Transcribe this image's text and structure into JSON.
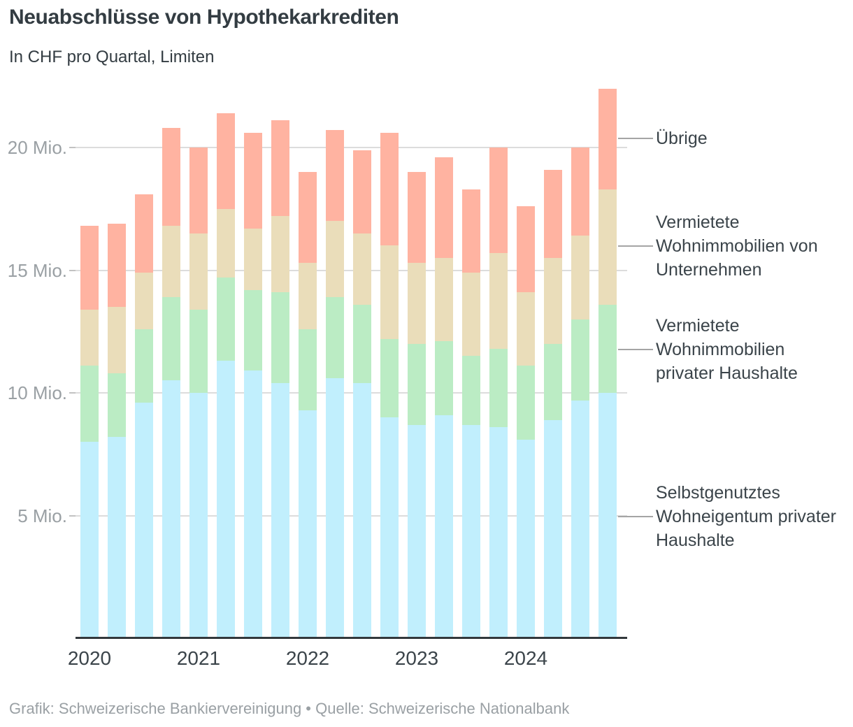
{
  "header": {
    "title": "Neuabschlüsse von Hypothekarkrediten",
    "subtitle": "In CHF pro Quartal, Limiten"
  },
  "footer": {
    "credit": "Grafik: Schweizerische Bankiervereinigung • Quelle: Schweizerische Nationalbank"
  },
  "legend": {
    "items": [
      {
        "id": "uebrige",
        "label_lines": [
          "Übrige"
        ],
        "color": "#ffb3a1"
      },
      {
        "id": "vermietete-wohnimmobilien-unternehmen",
        "label_lines": [
          "Vermietete",
          "Wohnimmobilien von",
          "Unternehmen"
        ],
        "color": "#eaddba"
      },
      {
        "id": "vermietete-wohnimmobilien-haushalte",
        "label_lines": [
          "Vermietete",
          "Wohnimmobilien",
          "privater Haushalte"
        ],
        "color": "#bbecc4"
      },
      {
        "id": "selbstgenutztes-wohneigentum",
        "label_lines": [
          "Selbstgenutztes",
          "Wohneigentum privater",
          "Haushalte"
        ],
        "color": "#c1effd"
      }
    ]
  },
  "chart_data": {
    "type": "bar",
    "stacked": true,
    "title": "Neuabschlüsse von Hypothekarkrediten",
    "subtitle": "In CHF pro Quartal, Limiten",
    "unit": "Mio. CHF pro Quartal",
    "grid": true,
    "ylim": [
      0,
      22.5
    ],
    "yticks": [
      5,
      10,
      15,
      20
    ],
    "ytick_labels": [
      "5 Mio.",
      "10 Mio.",
      "15 Mio.",
      "20 Mio."
    ],
    "x_year_labels": [
      "2020",
      "2021",
      "2022",
      "2023",
      "2024"
    ],
    "categories": [
      "2020 Q1",
      "2020 Q2",
      "2020 Q3",
      "2020 Q4",
      "2021 Q1",
      "2021 Q2",
      "2021 Q3",
      "2021 Q4",
      "2022 Q1",
      "2022 Q2",
      "2022 Q3",
      "2022 Q4",
      "2023 Q1",
      "2023 Q2",
      "2023 Q3",
      "2023 Q4",
      "2024 Q1",
      "2024 Q2",
      "2024 Q3",
      "2024 Q4"
    ],
    "series": [
      {
        "name": "Selbstgenutztes Wohneigentum privater Haushalte",
        "color": "#c1effd",
        "values": [
          8.0,
          8.2,
          9.6,
          10.5,
          10.0,
          11.3,
          10.9,
          10.4,
          9.3,
          10.6,
          10.4,
          9.0,
          8.7,
          9.1,
          8.7,
          8.6,
          8.1,
          8.9,
          9.7,
          10.0
        ]
      },
      {
        "name": "Vermietete Wohnimmobilien privater Haushalte",
        "color": "#bbecc4",
        "values": [
          3.1,
          2.6,
          3.0,
          3.4,
          3.4,
          3.4,
          3.3,
          3.7,
          3.3,
          3.3,
          3.2,
          3.2,
          3.3,
          3.0,
          2.8,
          3.2,
          3.0,
          3.1,
          3.3,
          3.6
        ]
      },
      {
        "name": "Vermietete Wohnimmobilien von Unternehmen",
        "color": "#eaddba",
        "values": [
          2.3,
          2.7,
          2.3,
          2.9,
          3.1,
          2.8,
          2.5,
          3.1,
          2.7,
          3.1,
          2.9,
          3.8,
          3.3,
          3.4,
          3.4,
          3.9,
          3.0,
          3.5,
          3.4,
          4.7
        ]
      },
      {
        "name": "Übrige",
        "color": "#ffb3a1",
        "values": [
          3.4,
          3.4,
          3.2,
          4.0,
          3.5,
          3.9,
          3.9,
          3.9,
          3.7,
          3.7,
          3.4,
          4.6,
          3.7,
          4.1,
          3.4,
          4.3,
          3.5,
          3.6,
          3.6,
          4.1
        ]
      }
    ]
  },
  "colors": {
    "axis": "#33383c",
    "gridline": "#dcdcdc",
    "text_dark": "#333c42",
    "text_gray": "#9aa0a4"
  }
}
